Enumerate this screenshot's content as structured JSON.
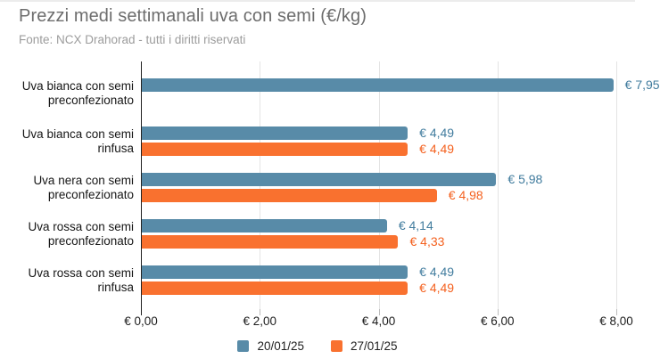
{
  "header": {
    "title": "Prezzi medi settimanali uva con semi (€/kg)",
    "source": "Fonte: NCX Drahorad - tutti i diritti riservati"
  },
  "chart_data": {
    "type": "bar",
    "orientation": "horizontal",
    "title": "Prezzi medi settimanali uva con semi (€/kg)",
    "subtitle": "Fonte: NCX Drahorad - tutti i diritti riservati",
    "categories": [
      "Uva bianca con semi preconfezionato",
      "Uva bianca con semi rinfusa",
      "Uva nera con semi preconfezionato",
      "Uva rossa con semi preconfezionato",
      "Uva rossa con semi rinfusa"
    ],
    "category_lines": [
      [
        "Uva bianca con semi",
        "preconfezionato"
      ],
      [
        "Uva bianca con semi",
        "rinfusa"
      ],
      [
        "Uva nera con semi",
        "preconfezionato"
      ],
      [
        "Uva rossa con semi",
        "preconfezionato"
      ],
      [
        "Uva rossa con semi",
        "rinfusa"
      ]
    ],
    "series": [
      {
        "name": "20/01/25",
        "color": "#588BA8",
        "label_color": "#417C9E",
        "values": [
          7.95,
          4.49,
          5.98,
          4.14,
          4.49
        ],
        "value_labels": [
          "€ 7,95",
          "€ 4,49",
          "€ 5,98",
          "€ 4,14",
          "€ 4,49"
        ]
      },
      {
        "name": "27/01/25",
        "color": "#F9712F",
        "label_color": "#F4611F",
        "values": [
          null,
          4.49,
          4.98,
          4.33,
          4.49
        ],
        "value_labels": [
          null,
          "€ 4,49",
          "€ 4,98",
          "€ 4,33",
          "€ 4,49"
        ]
      }
    ],
    "xlim": [
      0,
      8
    ],
    "x_ticks": [
      {
        "value": 0,
        "label": "€ 0,00"
      },
      {
        "value": 2,
        "label": "€ 2,00"
      },
      {
        "value": 4,
        "label": "€ 4,00"
      },
      {
        "value": 6,
        "label": "€ 6,00"
      },
      {
        "value": 8,
        "label": "€ 8,00"
      }
    ],
    "grid": true,
    "legend_position": "bottom"
  }
}
